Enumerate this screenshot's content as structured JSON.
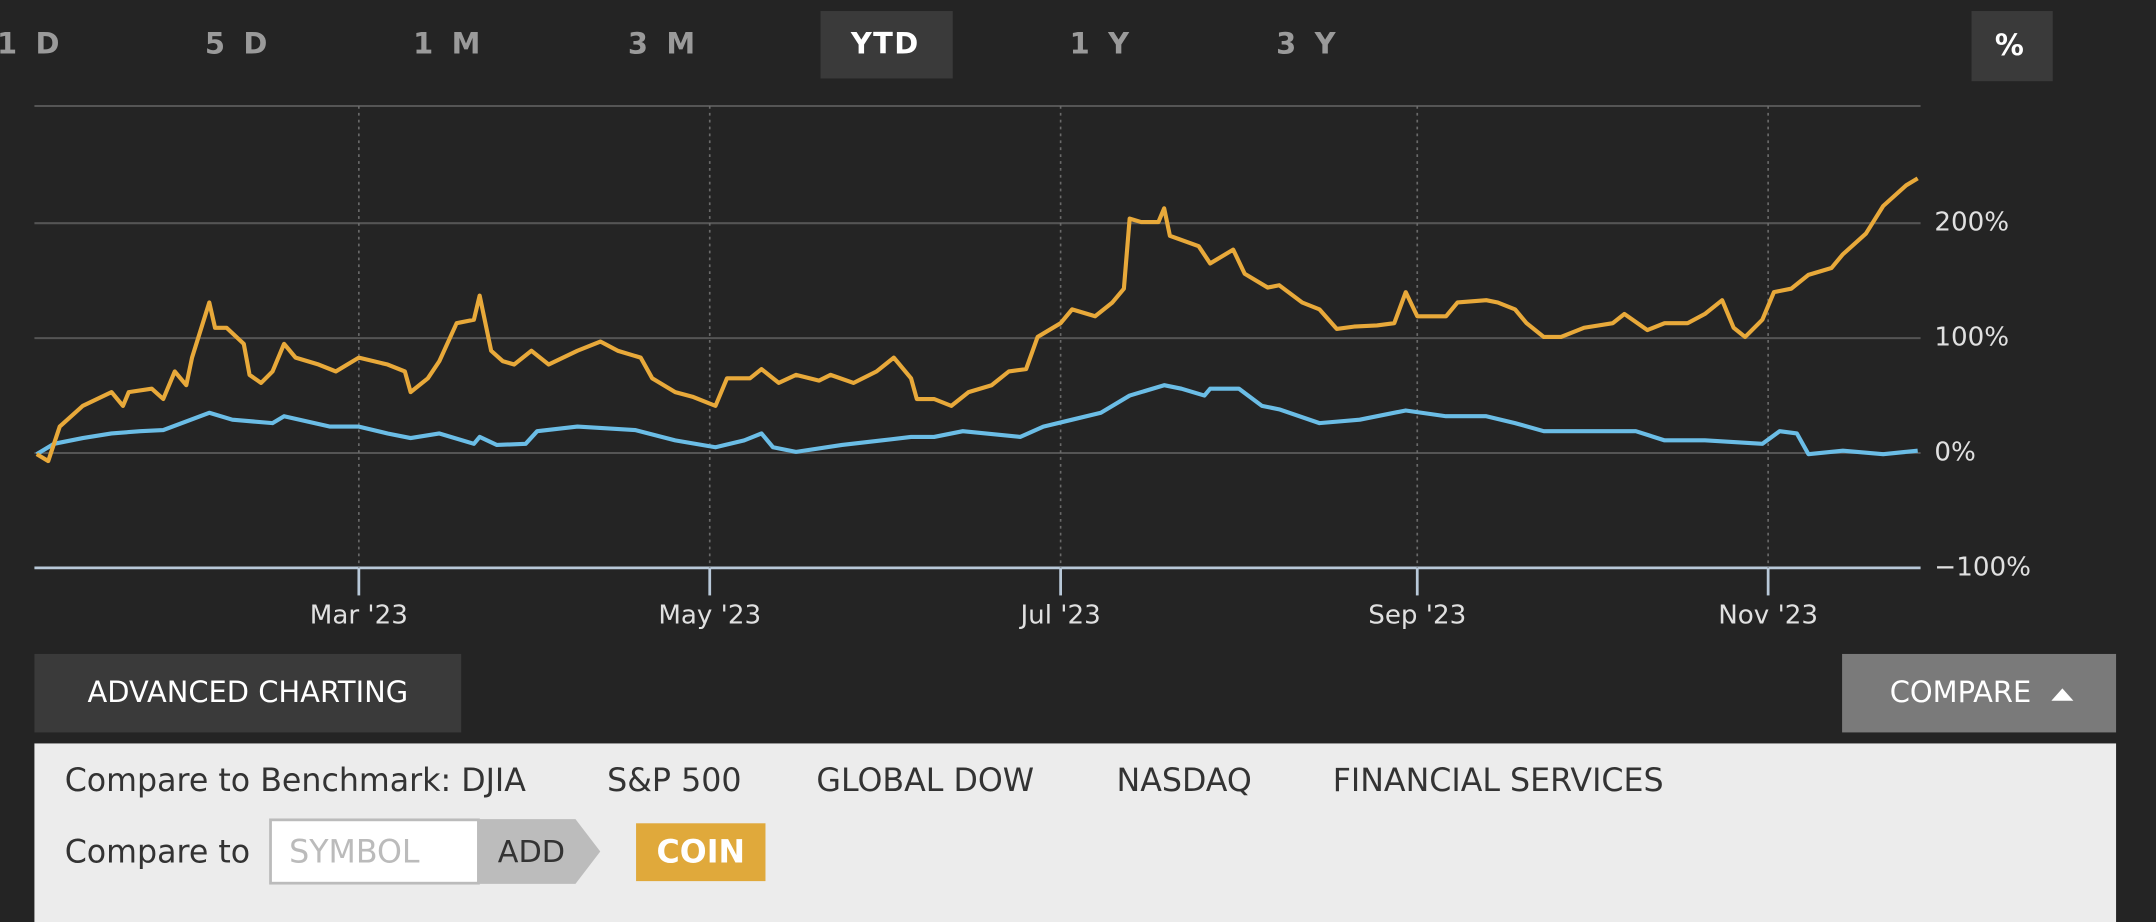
{
  "tabs": [
    "1 D",
    "5 D",
    "1 M",
    "3 M",
    "YTD",
    "1 Y",
    "3 Y"
  ],
  "percent_toggle": "%",
  "advanced_charting": "ADVANCED CHARTING",
  "compare": "COMPARE",
  "compare_panel": {
    "benchmark_label": "Compare to Benchmark:",
    "benchmarks": [
      "DJIA",
      "S&P 500",
      "GLOBAL DOW",
      "NASDAQ",
      "FINANCIAL SERVICES"
    ],
    "symbol_label": "Compare to",
    "symbol_placeholder": "SYMBOL",
    "add": "ADD"
  },
  "chart_data": {
    "type": "line",
    "xlim": [
      2.6,
      330.5
    ],
    "xticks": [
      {
        "value": 59,
        "label": "Mar '23"
      },
      {
        "value": 120,
        "label": "May '23"
      },
      {
        "value": 181,
        "label": "Jul '23"
      },
      {
        "value": 243,
        "label": "Sep '23"
      },
      {
        "value": 304,
        "label": "Nov '23"
      }
    ],
    "ylim": [
      -100,
      302
    ],
    "yticks": [
      {
        "value": -100,
        "label": "−100%"
      },
      {
        "value": 0,
        "label": "0%"
      },
      {
        "value": 100,
        "label": "100%"
      },
      {
        "value": 200,
        "label": "200%"
      }
    ],
    "grid": true,
    "series": [
      {
        "name": "COIN",
        "color": "#e8a93a",
        "x": [
          3,
          5,
          7,
          11,
          16,
          18,
          19,
          23,
          25,
          27,
          29,
          30,
          33,
          34,
          36,
          39,
          40,
          42,
          44,
          46,
          48,
          52,
          55,
          59,
          64,
          67,
          68,
          71,
          73,
          76,
          79,
          80,
          82,
          84,
          86,
          89,
          92,
          97,
          101,
          104,
          108,
          110,
          114,
          117,
          121,
          123,
          127,
          129,
          132,
          135,
          139,
          141,
          145,
          149,
          152,
          155,
          156,
          159,
          162,
          165,
          169,
          172,
          175,
          177,
          181,
          183,
          187,
          190,
          192,
          193,
          195,
          198,
          199,
          200,
          205,
          207,
          211,
          213,
          217,
          219,
          223,
          226,
          229,
          232,
          236,
          239,
          241,
          243,
          248,
          250,
          255,
          257,
          260,
          262,
          265,
          268,
          272,
          277,
          279,
          283,
          286,
          290,
          293,
          296,
          298,
          300,
          303,
          305,
          308,
          311,
          315,
          317,
          321,
          324,
          328,
          330
        ],
        "values": [
          -1,
          -7,
          23,
          41,
          53,
          41,
          53,
          56,
          47,
          71,
          59,
          83,
          131,
          109,
          109,
          95,
          68,
          61,
          71,
          95,
          83,
          77,
          71,
          83,
          77,
          71,
          53,
          65,
          80,
          113,
          116,
          137,
          89,
          80,
          77,
          89,
          77,
          89,
          97,
          89,
          83,
          65,
          53,
          49,
          41,
          65,
          65,
          73,
          61,
          68,
          63,
          68,
          61,
          71,
          83,
          65,
          47,
          47,
          41,
          53,
          59,
          71,
          73,
          101,
          113,
          125,
          119,
          131,
          143,
          204,
          201,
          201,
          213,
          189,
          180,
          165,
          177,
          156,
          144,
          146,
          131,
          125,
          108,
          110,
          111,
          113,
          140,
          119,
          119,
          131,
          133,
          131,
          125,
          113,
          101,
          101,
          109,
          113,
          121,
          107,
          113,
          113,
          121,
          133,
          109,
          101,
          116,
          140,
          143,
          155,
          161,
          173,
          191,
          215,
          233,
          239
        ]
      },
      {
        "color": "#6bbde6",
        "x": [
          3,
          6,
          11,
          16,
          21,
          25,
          33,
          37,
          44,
          46,
          54,
          59,
          64,
          68,
          73,
          79,
          80,
          83,
          88,
          90,
          97,
          107,
          114,
          121,
          126,
          129,
          131,
          135,
          143,
          150,
          155,
          159,
          164,
          174,
          178,
          183,
          188,
          193,
          199,
          202,
          206,
          207,
          212,
          216,
          219,
          226,
          233,
          241,
          248,
          255,
          260,
          265,
          272,
          281,
          286,
          293,
          303,
          306,
          309,
          311,
          317,
          324,
          330
        ],
        "values": [
          -1,
          8,
          13,
          17,
          19,
          20,
          35,
          29,
          26,
          32,
          23,
          23,
          17,
          13,
          17,
          8,
          14,
          7,
          8,
          19,
          23,
          20,
          11,
          5,
          11,
          17,
          5,
          1,
          7,
          11,
          14,
          14,
          19,
          14,
          23,
          29,
          35,
          50,
          59,
          56,
          50,
          56,
          56,
          41,
          38,
          26,
          29,
          37,
          32,
          32,
          26,
          19,
          19,
          19,
          11,
          11,
          8,
          19,
          17,
          -1,
          2,
          -1,
          2
        ]
      }
    ]
  }
}
